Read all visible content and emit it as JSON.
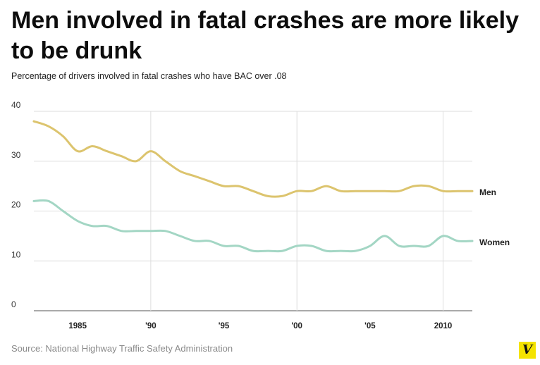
{
  "header": {
    "title": "Men involved in fatal crashes are more likely to be drunk",
    "subtitle": "Percentage of drivers involved in fatal crashes who have BAC over .08"
  },
  "footer": {
    "source": "Source: National Highway Traffic Safety Administration",
    "logo_letter": "V"
  },
  "colors": {
    "men": "#dcc46e",
    "women": "#a3d6c4",
    "grid": "#dddddd",
    "logo_bg": "#f4e301"
  },
  "chart_data": {
    "type": "line",
    "title": "Men involved in fatal crashes are more likely to be drunk",
    "subtitle": "Percentage of drivers involved in fatal crashes who have BAC over .08",
    "xlabel": "",
    "ylabel": "",
    "xlim": [
      1982,
      2012
    ],
    "ylim": [
      0,
      40
    ],
    "yticks": [
      0,
      10,
      20,
      30,
      40
    ],
    "xticks": [
      {
        "value": 1985,
        "label": "1985"
      },
      {
        "value": 1990,
        "label": "'90"
      },
      {
        "value": 1995,
        "label": "'95"
      },
      {
        "value": 2000,
        "label": "'00"
      },
      {
        "value": 2005,
        "label": "'05"
      },
      {
        "value": 2010,
        "label": "2010"
      }
    ],
    "grid": true,
    "legend": "inline-right",
    "x": [
      1982,
      1983,
      1984,
      1985,
      1986,
      1987,
      1988,
      1989,
      1990,
      1991,
      1992,
      1993,
      1994,
      1995,
      1996,
      1997,
      1998,
      1999,
      2000,
      2001,
      2002,
      2003,
      2004,
      2005,
      2006,
      2007,
      2008,
      2009,
      2010,
      2011,
      2012
    ],
    "series": [
      {
        "name": "Men",
        "values": [
          38,
          37,
          35,
          32,
          33,
          32,
          31,
          30,
          32,
          30,
          28,
          27,
          26,
          25,
          25,
          24,
          23,
          23,
          24,
          24,
          25,
          24,
          24,
          24,
          24,
          24,
          25,
          25,
          24,
          24,
          24
        ]
      },
      {
        "name": "Women",
        "values": [
          22,
          22,
          20,
          18,
          17,
          17,
          16,
          16,
          16,
          16,
          15,
          14,
          14,
          13,
          13,
          12,
          12,
          12,
          13,
          13,
          12,
          12,
          12,
          13,
          15,
          13,
          13,
          13,
          15,
          14,
          14
        ]
      }
    ]
  }
}
